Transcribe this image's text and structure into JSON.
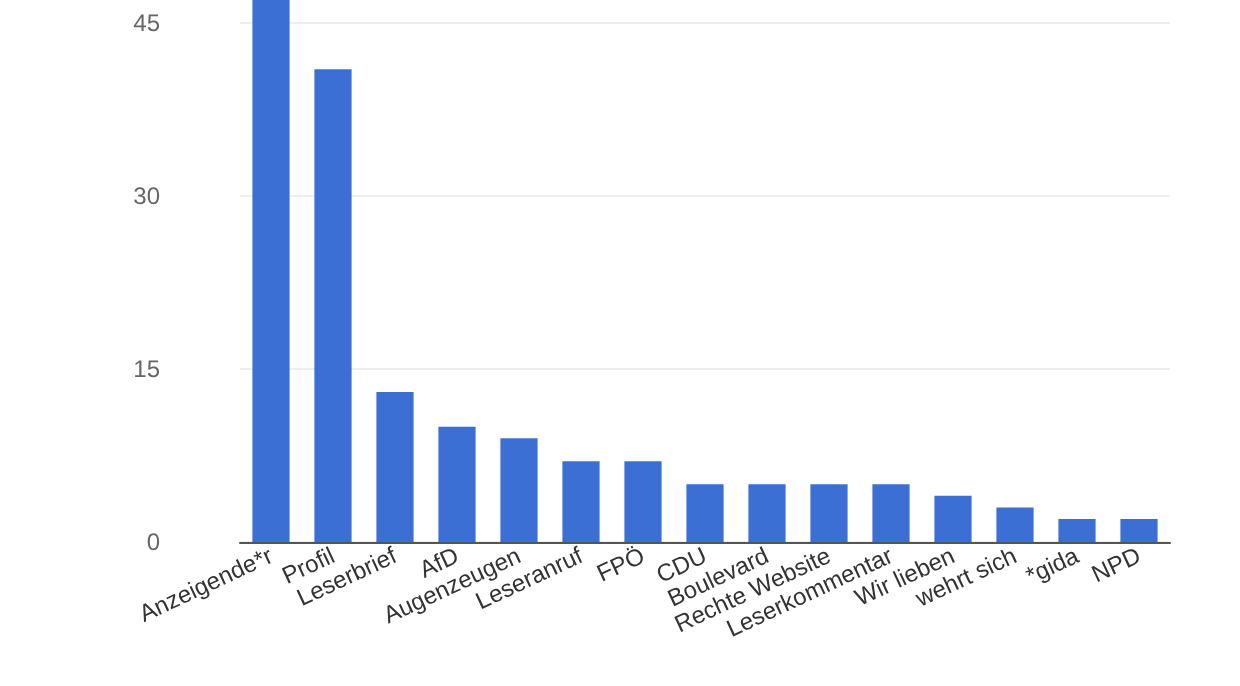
{
  "chart_data": {
    "type": "bar",
    "categories": [
      "Anzeigende*r",
      "Profil",
      "Leserbrief",
      "AfD",
      "Augenzeugen",
      "Leseranruf",
      "FPÖ",
      "CDU",
      "Boulevard",
      "Rechte Website",
      "Leserkommentar",
      "Wir lieben",
      "wehrt sich",
      "*gida",
      "NPD"
    ],
    "values": [
      47,
      41,
      13,
      10,
      9,
      7,
      7,
      5,
      5,
      5,
      5,
      4,
      3,
      2,
      2
    ],
    "color": "#3b6fd4",
    "ylim": [
      0,
      47
    ],
    "yticks": [
      0,
      15,
      30,
      45
    ],
    "grid": "y"
  }
}
